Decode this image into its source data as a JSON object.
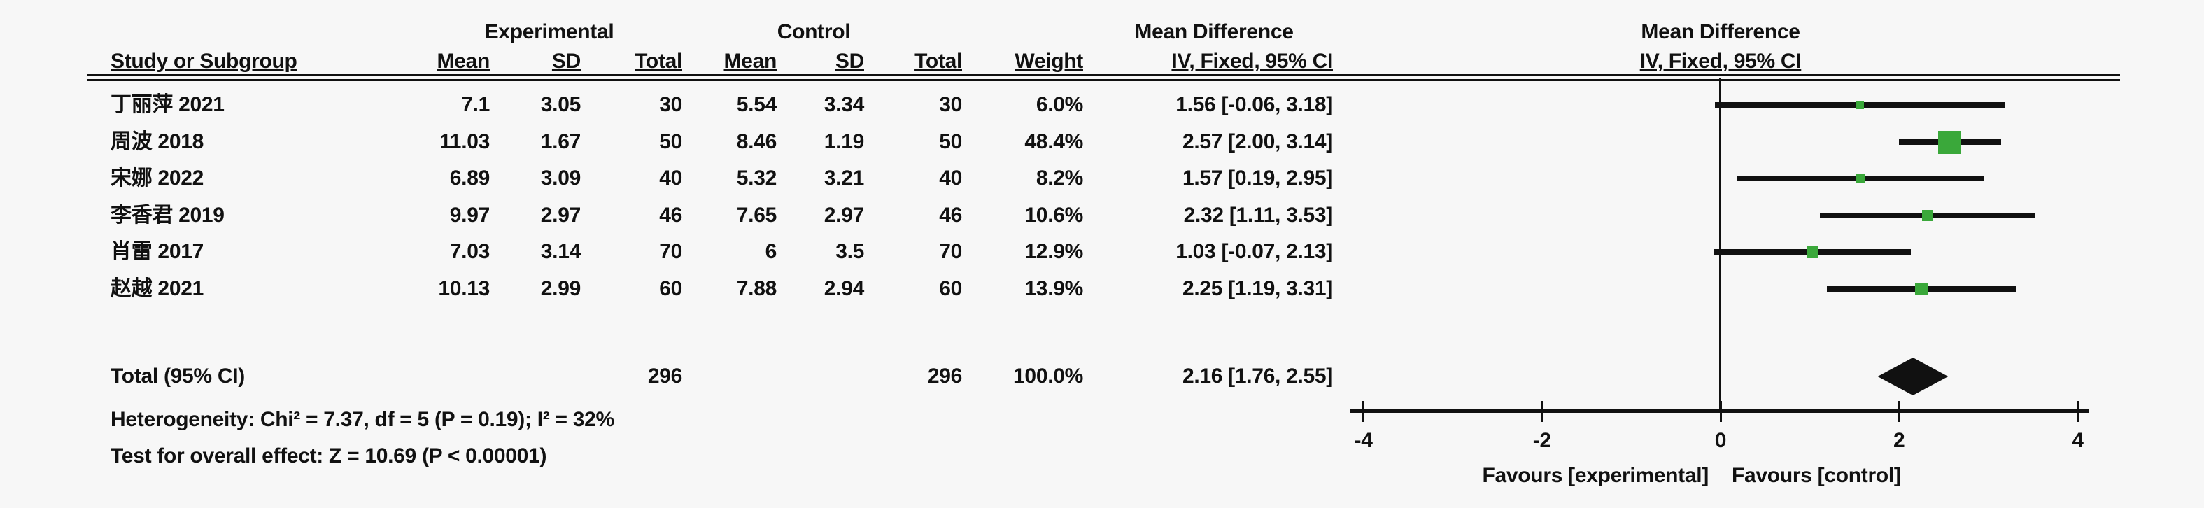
{
  "header": {
    "group_experimental": "Experimental",
    "group_control": "Control",
    "mean_difference_text_col": "Mean Difference",
    "mean_difference_plot_col": "Mean Difference",
    "iv_fixed_text_col": "IV, Fixed, 95% CI",
    "iv_fixed_plot_col": "IV, Fixed, 95% CI",
    "study_or_subgroup": "Study or Subgroup",
    "exp_mean": "Mean",
    "exp_sd": "SD",
    "exp_total": "Total",
    "ctl_mean": "Mean",
    "ctl_sd": "SD",
    "ctl_total": "Total",
    "weight": "Weight"
  },
  "rows": [
    {
      "study": "丁丽萍 2021",
      "e_mean": "7.1",
      "e_sd": "3.05",
      "e_total": "30",
      "c_mean": "5.54",
      "c_sd": "3.34",
      "c_total": "30",
      "weight": "6.0%",
      "ci": "1.56 [-0.06, 3.18]"
    },
    {
      "study": "周波 2018",
      "e_mean": "11.03",
      "e_sd": "1.67",
      "e_total": "50",
      "c_mean": "8.46",
      "c_sd": "1.19",
      "c_total": "50",
      "weight": "48.4%",
      "ci": "2.57 [2.00, 3.14]"
    },
    {
      "study": "宋娜 2022",
      "e_mean": "6.89",
      "e_sd": "3.09",
      "e_total": "40",
      "c_mean": "5.32",
      "c_sd": "3.21",
      "c_total": "40",
      "weight": "8.2%",
      "ci": "1.57 [0.19, 2.95]"
    },
    {
      "study": "李香君 2019",
      "e_mean": "9.97",
      "e_sd": "2.97",
      "e_total": "46",
      "c_mean": "7.65",
      "c_sd": "2.97",
      "c_total": "46",
      "weight": "10.6%",
      "ci": "2.32 [1.11, 3.53]"
    },
    {
      "study": "肖雷 2017",
      "e_mean": "7.03",
      "e_sd": "3.14",
      "e_total": "70",
      "c_mean": "6",
      "c_sd": "3.5",
      "c_total": "70",
      "weight": "12.9%",
      "ci": "1.03 [-0.07, 2.13]"
    },
    {
      "study": "赵越 2021",
      "e_mean": "10.13",
      "e_sd": "2.99",
      "e_total": "60",
      "c_mean": "7.88",
      "c_sd": "2.94",
      "c_total": "60",
      "weight": "13.9%",
      "ci": "2.25 [1.19, 3.31]"
    }
  ],
  "totals": {
    "label": "Total (95% CI)",
    "e_total": "296",
    "c_total": "296",
    "weight": "100.0%",
    "ci": "2.16 [1.76, 2.55]"
  },
  "footer": {
    "heterogeneity": "Heterogeneity: Chi² = 7.37, df = 5 (P = 0.19); I² = 32%",
    "overall_effect": "Test for overall effect: Z = 10.69 (P < 0.00001)"
  },
  "axis_labels": {
    "favours_left": "Favours [experimental]",
    "favours_right": "Favours [control]"
  },
  "colors": {
    "square_green": "#3aa83a",
    "line_black": "#111111",
    "background": "#f7f7f7"
  },
  "chart_data": {
    "type": "forest",
    "title": "Mean Difference, IV, Fixed, 95% CI",
    "axis": {
      "min": -4,
      "max": 4,
      "ticks": [
        -4,
        -2,
        0,
        2,
        4
      ],
      "zero_line": 0
    },
    "studies": [
      {
        "name": "丁丽萍 2021",
        "md": 1.56,
        "ci_low": -0.06,
        "ci_high": 3.18,
        "weight_pct": 6.0
      },
      {
        "name": "周波 2018",
        "md": 2.57,
        "ci_low": 2.0,
        "ci_high": 3.14,
        "weight_pct": 48.4
      },
      {
        "name": "宋娜 2022",
        "md": 1.57,
        "ci_low": 0.19,
        "ci_high": 2.95,
        "weight_pct": 8.2
      },
      {
        "name": "李香君 2019",
        "md": 2.32,
        "ci_low": 1.11,
        "ci_high": 3.53,
        "weight_pct": 10.6
      },
      {
        "name": "肖雷 2017",
        "md": 1.03,
        "ci_low": -0.07,
        "ci_high": 2.13,
        "weight_pct": 12.9
      },
      {
        "name": "赵越 2021",
        "md": 2.25,
        "ci_low": 1.19,
        "ci_high": 3.31,
        "weight_pct": 13.9
      }
    ],
    "total": {
      "md": 2.16,
      "ci_low": 1.76,
      "ci_high": 2.55,
      "weight_pct": 100.0,
      "heterogeneity": {
        "chi2": 7.37,
        "df": 5,
        "p": 0.19,
        "i2_pct": 32
      },
      "overall_effect": {
        "z": 10.69,
        "p": "< 0.00001"
      }
    }
  }
}
